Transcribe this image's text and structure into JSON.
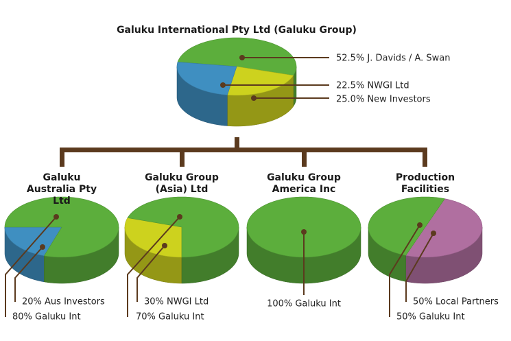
{
  "parent": {
    "title": "Galuku International Pty Ltd (Galuku Group)",
    "slices": [
      {
        "value": 52.5,
        "label": "52.5% J. Davids / A. Swan",
        "color": "#5cae3c"
      },
      {
        "value": 22.5,
        "label": "22.5% NWGI Ltd",
        "color": "#cdd21e"
      },
      {
        "value": 25.0,
        "label": "25.0% New Investors",
        "color": "#3f8fc1"
      }
    ]
  },
  "children": [
    {
      "title": "Galuku Australia Pty Ltd",
      "slices": [
        {
          "value": 20,
          "label": "20% Aus Investors",
          "color": "#3f8fc1"
        },
        {
          "value": 80,
          "label": "80% Galuku Int",
          "color": "#5cae3c"
        }
      ]
    },
    {
      "title": "Galuku Group (Asia) Ltd",
      "slices": [
        {
          "value": 30,
          "label": "30% NWGI Ltd",
          "color": "#cdd21e"
        },
        {
          "value": 70,
          "label": "70% Galuku Int",
          "color": "#5cae3c"
        }
      ]
    },
    {
      "title": "Galuku Group America Inc",
      "slices": [
        {
          "value": 100,
          "label": "100% Galuku Int",
          "color": "#5cae3c"
        }
      ]
    },
    {
      "title": "Production Facilities",
      "slices": [
        {
          "value": 50,
          "label": "50% Local Partners",
          "color": "#b06fa0"
        },
        {
          "value": 50,
          "label": "50% Galuku Int",
          "color": "#5cae3c"
        }
      ]
    }
  ]
}
